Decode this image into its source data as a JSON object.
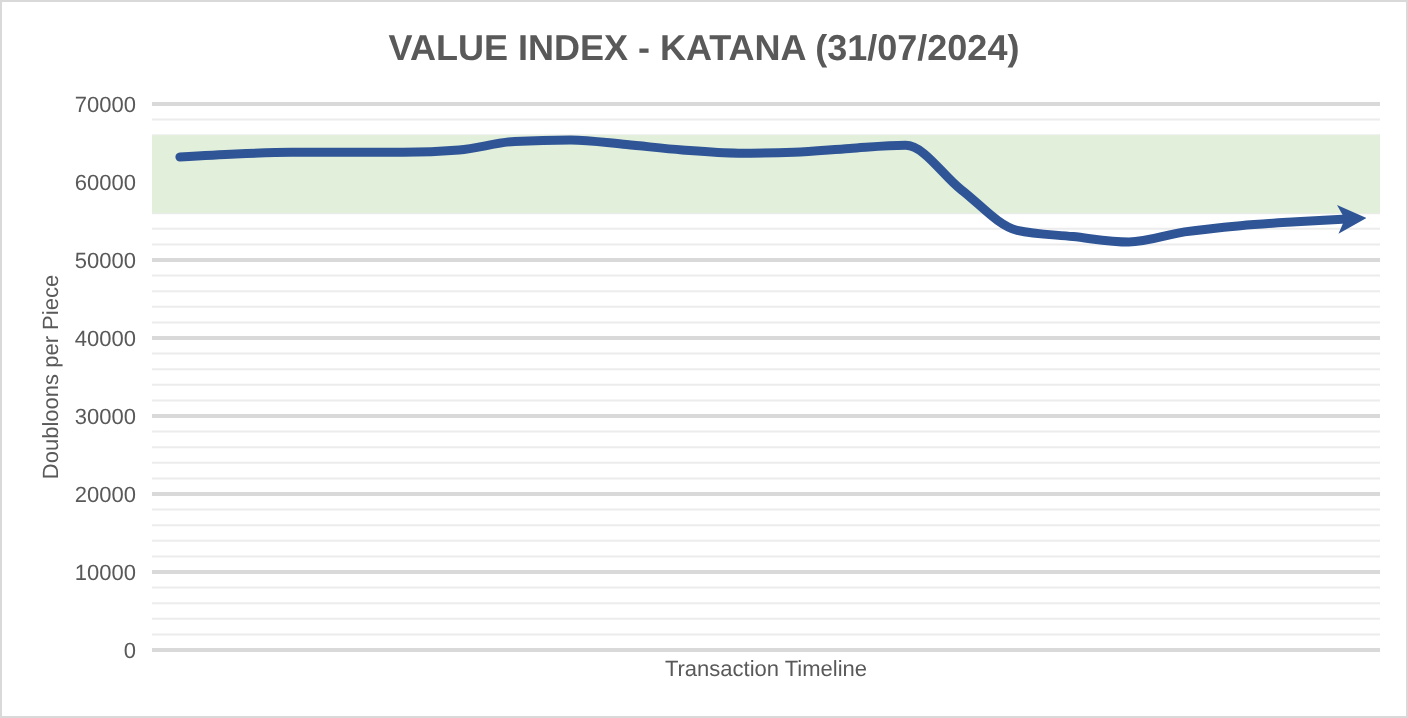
{
  "chart_data": {
    "type": "line",
    "title": "VALUE INDEX - KATANA (31/07/2024)",
    "xlabel": "Transaction Timeline",
    "ylabel": "Doubloons per Piece",
    "categories": [
      null,
      null,
      null,
      null,
      null,
      null,
      null,
      null,
      null,
      null,
      null,
      null,
      null,
      null,
      null,
      null,
      null,
      null,
      null,
      null,
      null,
      null
    ],
    "series": [
      {
        "color": "#2f5597",
        "values": [
          63200,
          63600,
          63800,
          63800,
          63800,
          64100,
          65200,
          65400,
          64800,
          64100,
          63700,
          63800,
          64300,
          64700,
          59000,
          53800,
          53000,
          52300,
          53600,
          54400,
          54900,
          55300
        ]
      }
    ],
    "ylim": [
      0,
      70000
    ],
    "yticks": [
      0,
      {
        "value": 2000,
        "label": null
      },
      {
        "value": 4000,
        "label": null
      },
      {
        "value": 6000,
        "label": null
      },
      {
        "value": 8000,
        "label": null
      },
      10000,
      {
        "value": 12000,
        "label": null
      },
      {
        "value": 14000,
        "label": null
      },
      {
        "value": 16000,
        "label": null
      },
      {
        "value": 18000,
        "label": null
      },
      20000,
      {
        "value": 22000,
        "label": null
      },
      {
        "value": 24000,
        "label": null
      },
      {
        "value": 26000,
        "label": null
      },
      {
        "value": 28000,
        "label": null
      },
      30000,
      {
        "value": 32000,
        "label": null
      },
      {
        "value": 34000,
        "label": null
      },
      {
        "value": 36000,
        "label": null
      },
      {
        "value": 38000,
        "label": null
      },
      40000,
      {
        "value": 42000,
        "label": null
      },
      {
        "value": 44000,
        "label": null
      },
      {
        "value": 46000,
        "label": null
      },
      {
        "value": 48000,
        "label": null
      },
      50000,
      {
        "value": 52000,
        "label": null
      },
      {
        "value": 54000,
        "label": null
      },
      {
        "value": 56000,
        "label": null
      },
      60000,
      {
        "value": 66000,
        "label": null
      },
      {
        "value": 68000,
        "label": null
      },
      70000
    ],
    "bands": [
      {
        "axis": "y",
        "from": 56000,
        "to": 66000,
        "color": "#e2efda"
      }
    ],
    "grid": "y",
    "line_style": "solid",
    "marker": "none"
  }
}
